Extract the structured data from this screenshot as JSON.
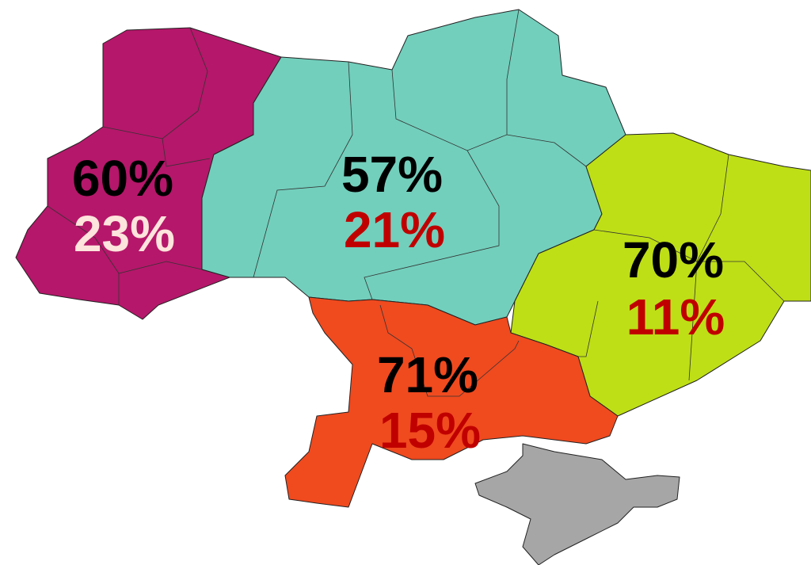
{
  "regions": [
    {
      "name": "west",
      "top": "60%",
      "bottom": "23%"
    },
    {
      "name": "center",
      "top": "57%",
      "bottom": "21%"
    },
    {
      "name": "east",
      "top": "70%",
      "bottom": "11%"
    },
    {
      "name": "south",
      "top": "71%",
      "bottom": "15%"
    }
  ]
}
